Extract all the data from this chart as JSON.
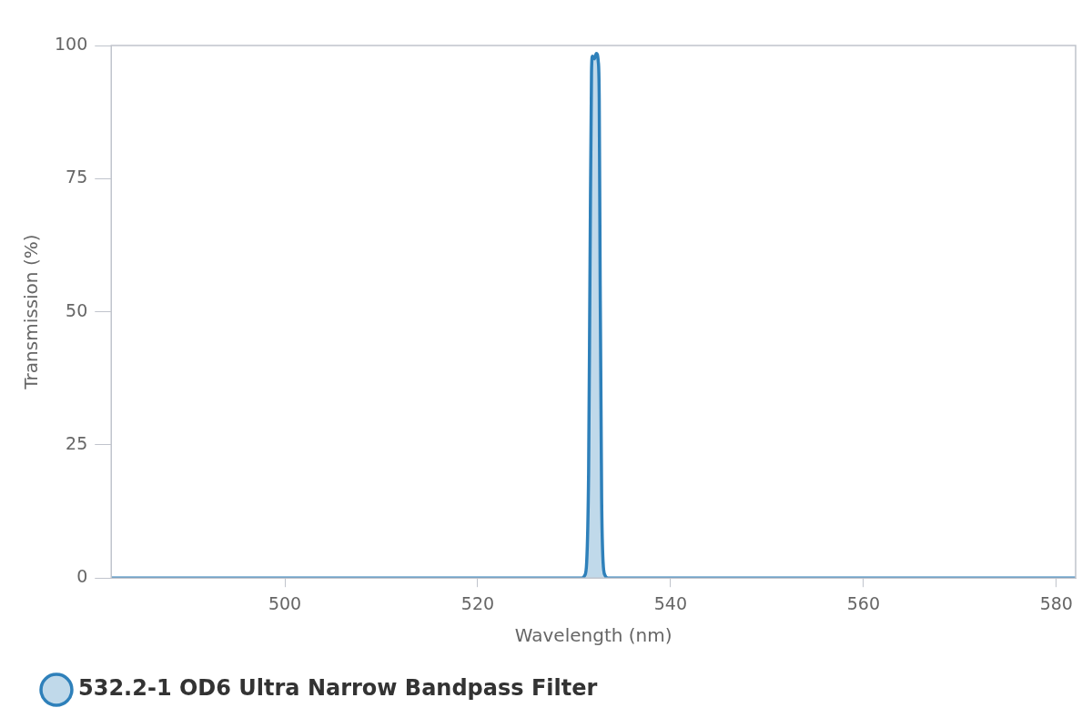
{
  "chart_data": {
    "type": "area",
    "xlabel": "Wavelength (nm)",
    "ylabel": "Transmission (%)",
    "xlim": [
      482,
      582
    ],
    "xticks": [
      500,
      520,
      540,
      560,
      580
    ],
    "ylim": [
      0,
      100
    ],
    "yticks": [
      0,
      25,
      50,
      75,
      100
    ],
    "grid": false,
    "legend": "bottom left",
    "marker": "none",
    "line_style": "solid",
    "series": [
      {
        "name": "532.2-1 OD6 Ultra Narrow Bandpass Filter",
        "color": "#2e80ba",
        "x": [
          482,
          530.8,
          531.1,
          531.3,
          531.5,
          531.65,
          531.8,
          531.9,
          532.1,
          532.3,
          532.5,
          532.6,
          532.7,
          532.85,
          533.0,
          533.2,
          533.5,
          582
        ],
        "values": [
          0,
          0,
          0.5,
          3,
          20,
          60,
          95,
          98,
          97.5,
          98.5,
          97,
          90,
          55,
          15,
          3,
          0.5,
          0,
          0
        ]
      }
    ]
  }
}
